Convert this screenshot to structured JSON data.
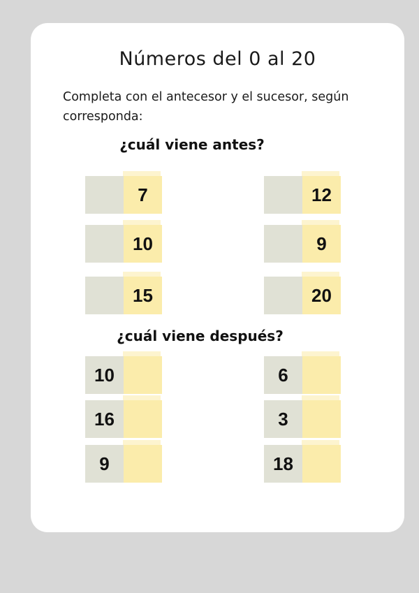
{
  "title": "Números del 0 al 20",
  "instruction": {
    "line1": "Completa con el antecesor y el sucesor, según",
    "line2": "corresponda:"
  },
  "antes": {
    "heading": "¿cuál viene antes?",
    "boxes": [
      {
        "answer": "",
        "given": "7"
      },
      {
        "answer": "",
        "given": "12"
      },
      {
        "answer": "",
        "given": "10"
      },
      {
        "answer": "",
        "given": "9"
      },
      {
        "answer": "",
        "given": "15"
      },
      {
        "answer": "",
        "given": "20"
      }
    ]
  },
  "despues": {
    "heading": "¿cuál viene después?",
    "boxes": [
      {
        "given": "10",
        "answer": ""
      },
      {
        "given": "6",
        "answer": ""
      },
      {
        "given": "16",
        "answer": ""
      },
      {
        "given": "3",
        "answer": ""
      },
      {
        "given": "9",
        "answer": ""
      },
      {
        "given": "18",
        "answer": ""
      }
    ]
  },
  "colors": {
    "page_background": "#d7d7d7",
    "card_background": "#ffffff",
    "cell_gray": "#e0e1d5",
    "cell_yellow": "#fbecab",
    "cell_yellow_light_strip": "#fdf4cf",
    "text": "#111111"
  }
}
